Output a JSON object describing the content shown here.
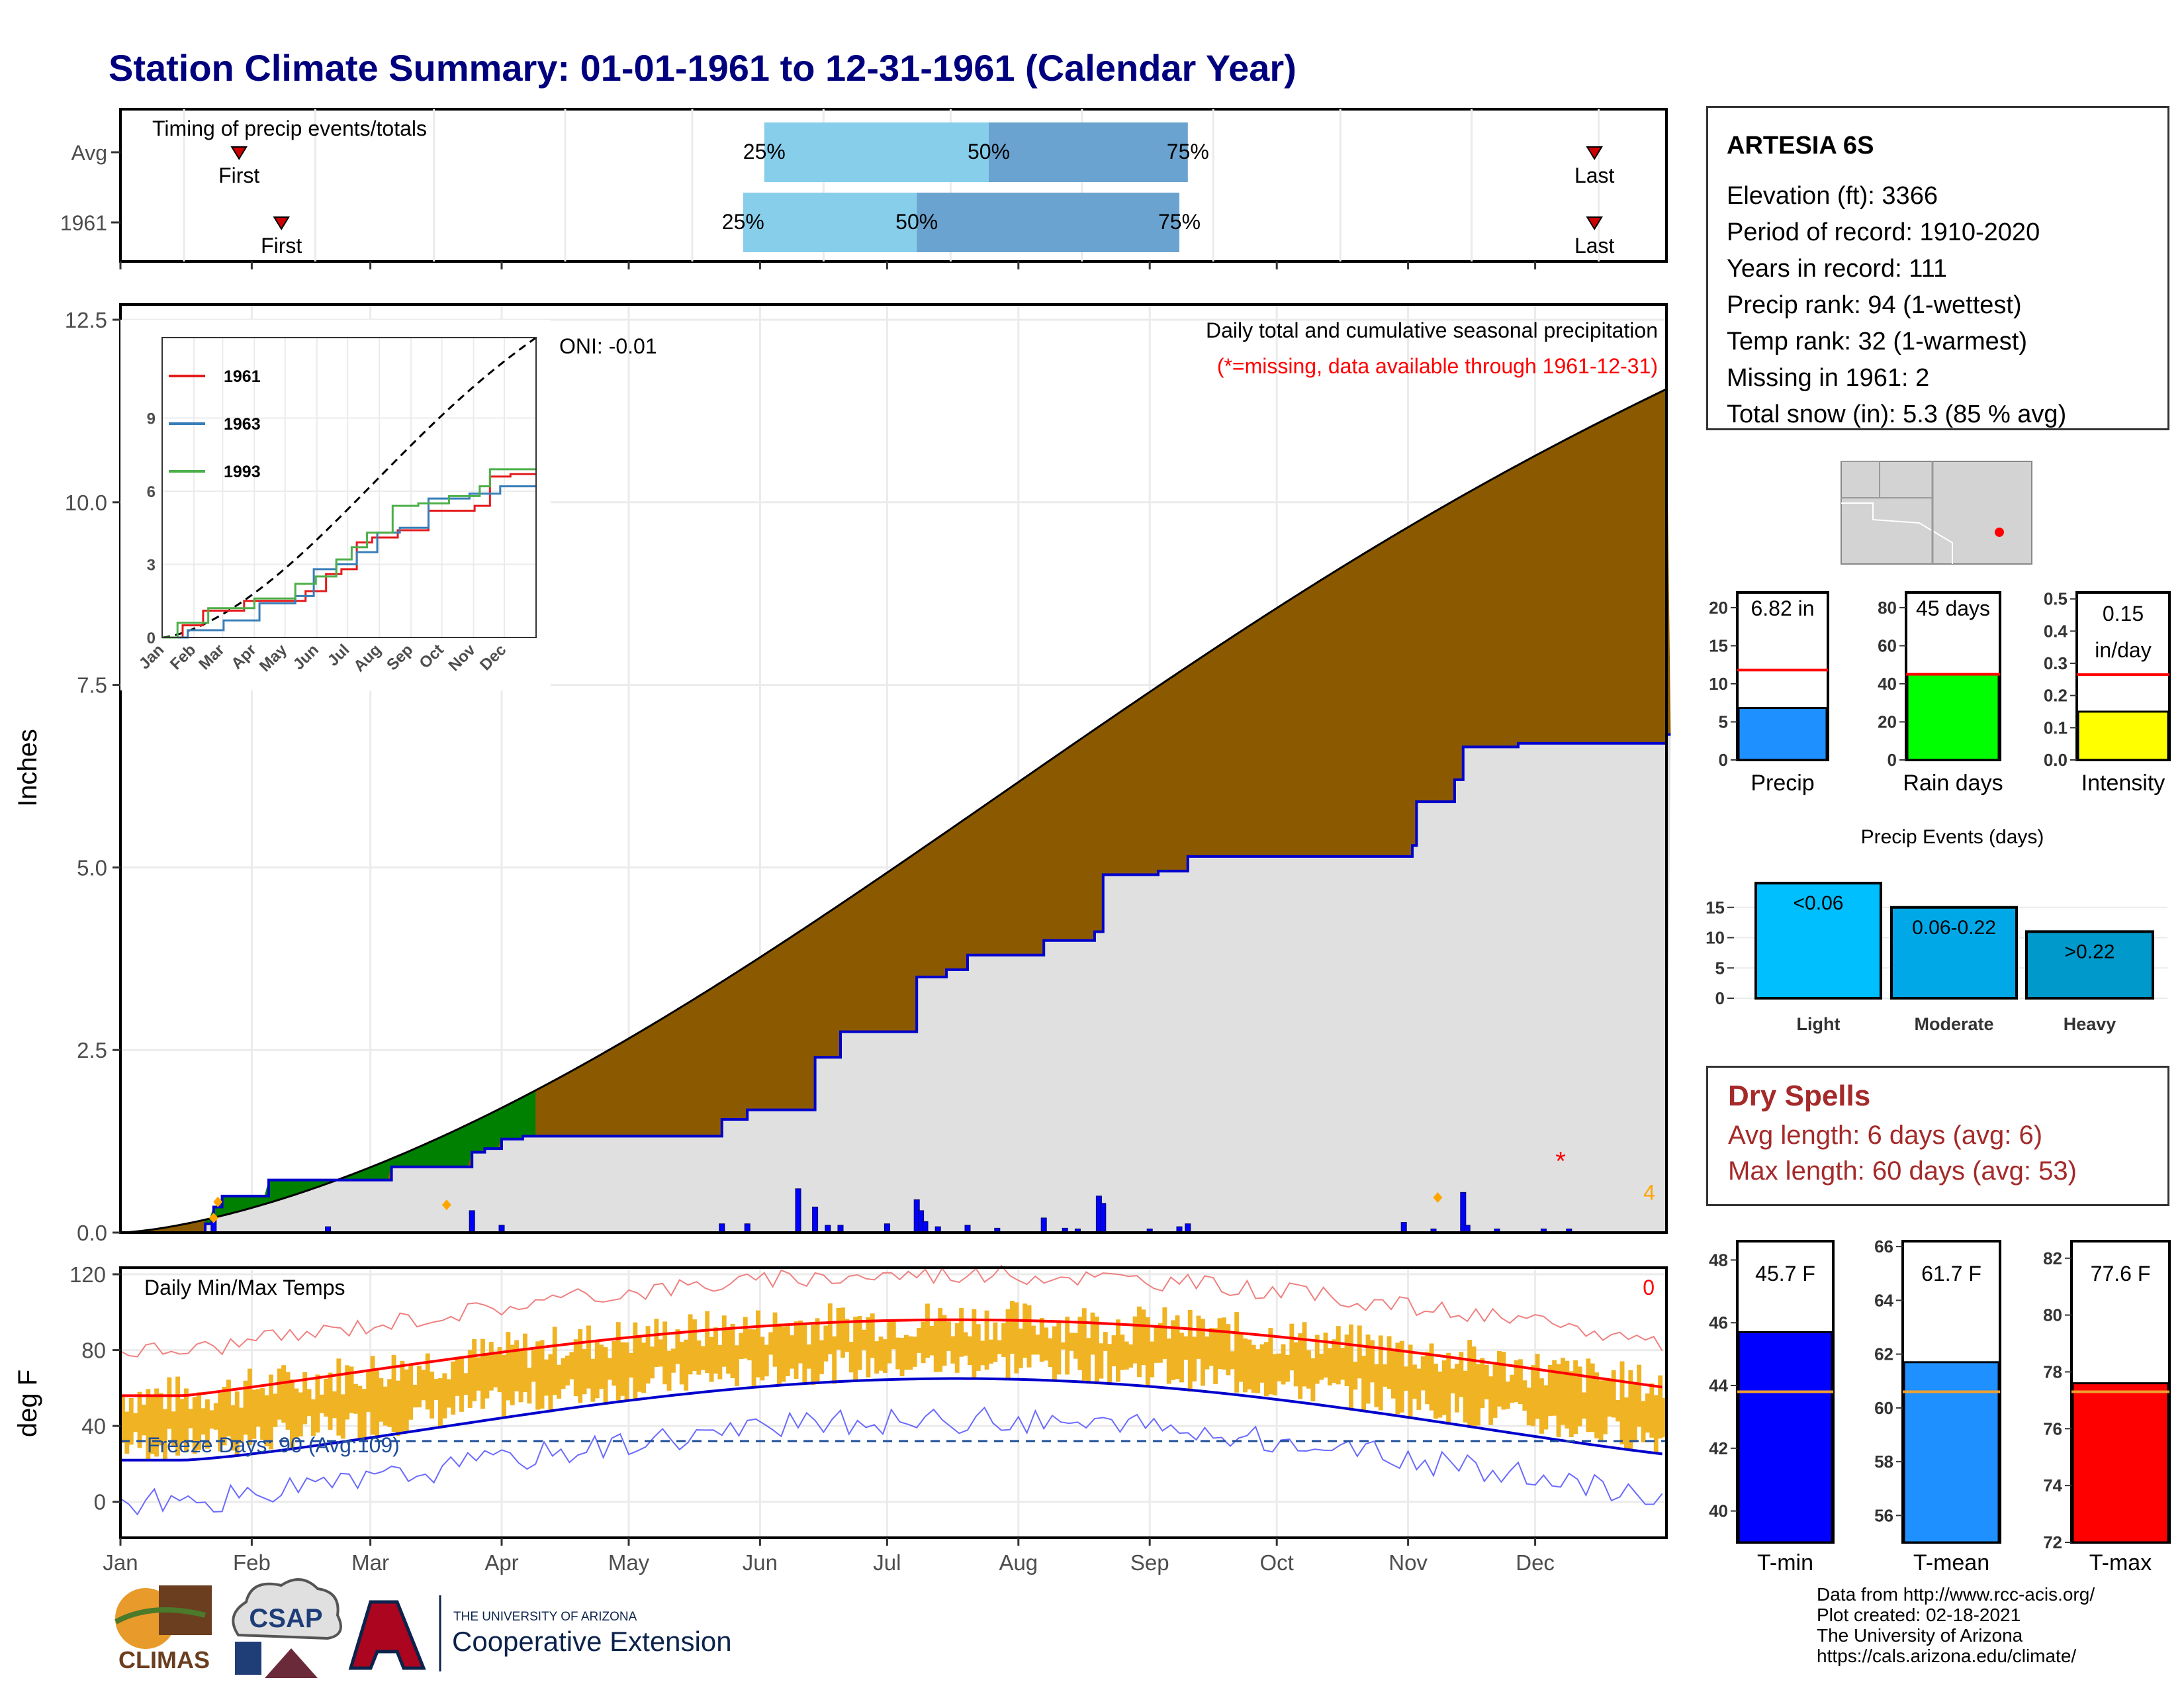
{
  "title": "Station Climate Summary: 01-01-1961 to 12-31-1961 (Calendar Year)",
  "timing_panel": {
    "label": "Timing of precip events/totals",
    "rows": [
      {
        "label": "Avg",
        "first": "First",
        "last": "Last",
        "p25": "25%",
        "p50": "50%",
        "p75": "75%",
        "first_doy": 28,
        "last_doy": 348,
        "p25_doy": 152,
        "p50_doy": 205,
        "p75_doy": 252
      },
      {
        "label": "1961",
        "first": "First",
        "last": "Last",
        "p25": "25%",
        "p50": "50%",
        "p75": "75%",
        "first_doy": 38,
        "last_doy": 348,
        "p25_doy": 147,
        "p50_doy": 188,
        "p75_doy": 250
      }
    ]
  },
  "precip_panel": {
    "ylabel": "Inches",
    "yticks": [
      "0.0",
      "2.5",
      "5.0",
      "7.5",
      "10.0",
      "12.5"
    ],
    "ylim": [
      0,
      12.5
    ],
    "oni": "ONI: -0.01",
    "note1": "Daily total and cumulative seasonal precipitation",
    "note2": "(*=missing, data available through 1961-12-31)",
    "count_label": "4",
    "colors": {
      "above": "#8b5a00",
      "below_fill": "#e0e0e0",
      "wetter": "#008000",
      "line": "#0000cc"
    }
  },
  "inset": {
    "legend": [
      "1961",
      "1963",
      "1993"
    ],
    "legend_colors": [
      "#e41a1c",
      "#377eb8",
      "#4daf4a"
    ],
    "yticks": [
      "0",
      "3",
      "6",
      "9"
    ],
    "months": [
      "Jan",
      "Feb",
      "Mar",
      "Apr",
      "May",
      "Jun",
      "Jul",
      "Aug",
      "Sep",
      "Oct",
      "Nov",
      "Dec"
    ]
  },
  "temp_panel": {
    "ylabel": "deg F",
    "yticks": [
      "0",
      "40",
      "80",
      "120"
    ],
    "label": "Daily Min/Max Temps",
    "missing_count": "0",
    "freeze": "Freeze Days: 90 (Avg:109)",
    "months": [
      "Jan",
      "Feb",
      "Mar",
      "Apr",
      "May",
      "Jun",
      "Jul",
      "Aug",
      "Sep",
      "Oct",
      "Nov",
      "Dec"
    ]
  },
  "station": {
    "name": "ARTESIA 6S",
    "lines": [
      "Elevation (ft): 3366",
      "Period of record: 1910-2020",
      "Years in record: 111",
      "Precip rank: 94 (1-wettest)",
      "Temp rank: 32 (1-warmest)",
      "Missing in 1961: 2",
      "Total snow (in): 5.3 (85 % avg)"
    ]
  },
  "mini_bars": [
    {
      "label": "Precip",
      "value_label": "6.82 in",
      "value": 6.82,
      "avg": 11.8,
      "ylim": [
        0,
        22
      ],
      "yticks": [
        "0",
        "5",
        "10",
        "15",
        "20"
      ],
      "tickvals": [
        0,
        5,
        10,
        15,
        20
      ],
      "color": "#1e90ff"
    },
    {
      "label": "Rain days",
      "value_label": "45 days",
      "value": 45,
      "avg": 45,
      "ylim": [
        0,
        88
      ],
      "yticks": [
        "0",
        "20",
        "40",
        "60",
        "80"
      ],
      "tickvals": [
        0,
        20,
        40,
        60,
        80
      ],
      "color": "#00ff00"
    },
    {
      "label": "Intensity",
      "value_label": "0.15 in/day",
      "value_lines": [
        "0.15",
        "in/day"
      ],
      "value": 0.15,
      "avg": 0.265,
      "ylim": [
        0,
        0.52
      ],
      "yticks": [
        "0.0",
        "0.1",
        "0.2",
        "0.3",
        "0.4",
        "0.5"
      ],
      "tickvals": [
        0,
        0.1,
        0.2,
        0.3,
        0.4,
        0.5
      ],
      "color": "#ffff00"
    }
  ],
  "precip_events": {
    "title": "Precip Events (days)",
    "categories": [
      "Light",
      "Moderate",
      "Heavy"
    ],
    "bar_labels": [
      "<0.06",
      "0.06-0.22",
      ">0.22"
    ],
    "values": [
      19,
      15,
      11
    ],
    "ylim": [
      0,
      20
    ],
    "yticks": [
      "0",
      "5",
      "10",
      "15"
    ],
    "colors": [
      "#00bfff",
      "#00a8e8",
      "#0099cc"
    ]
  },
  "dry_spells": {
    "title": "Dry Spells",
    "avg": "Avg length: 6 days (avg: 6)",
    "max": "Max length: 60 days (avg: 53)"
  },
  "temp_bars": [
    {
      "label": "T-min",
      "value_label": "45.7 F",
      "value": 45.7,
      "avg": 43.8,
      "ylim": [
        39,
        48.6
      ],
      "yticks": [
        "40",
        "42",
        "44",
        "46",
        "48"
      ],
      "tickvals": [
        40,
        42,
        44,
        46,
        48
      ],
      "color": "#0000ff"
    },
    {
      "label": "T-mean",
      "value_label": "61.7 F",
      "value": 61.7,
      "avg": 60.6,
      "ylim": [
        55,
        66.2
      ],
      "yticks": [
        "56",
        "58",
        "60",
        "62",
        "64",
        "66"
      ],
      "tickvals": [
        56,
        58,
        60,
        62,
        64,
        66
      ],
      "color": "#1e90ff"
    },
    {
      "label": "T-max",
      "value_label": "77.6 F",
      "value": 77.6,
      "avg": 77.3,
      "ylim": [
        72,
        82.6
      ],
      "yticks": [
        "72",
        "74",
        "76",
        "78",
        "80",
        "82"
      ],
      "tickvals": [
        72,
        74,
        76,
        78,
        80,
        82
      ],
      "color": "#ff0000"
    }
  ],
  "credits": [
    "Data from http://www.rcc-acis.org/",
    "Plot created: 02-18-2021",
    "The University of Arizona",
    "https://cals.arizona.edu/climate/"
  ],
  "logos": {
    "climas": "CLIMAS",
    "csap": "CSAP",
    "ua_small": "THE UNIVERSITY OF ARIZONA",
    "coop": "Cooperative Extension"
  }
}
